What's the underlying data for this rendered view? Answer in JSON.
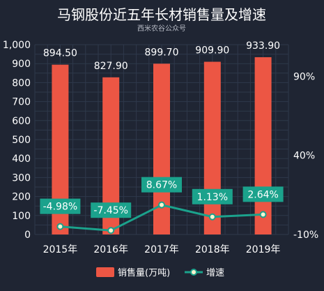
{
  "chart_data": {
    "type": "bar",
    "title": "马钢股份近五年长材销售量及增速",
    "subtitle": "西米农谷公众号",
    "categories": [
      "2015年",
      "2016年",
      "2017年",
      "2018年",
      "2019年"
    ],
    "series": [
      {
        "name": "销售量(万吨)",
        "type": "bar",
        "axis": "left",
        "values": [
          894.5,
          827.9,
          899.7,
          909.9,
          933.9
        ],
        "labels": [
          "894.50",
          "827.90",
          "899.70",
          "909.90",
          "933.90"
        ]
      },
      {
        "name": "增速",
        "type": "line",
        "axis": "right",
        "values": [
          -4.98,
          -7.45,
          8.67,
          1.13,
          2.64
        ],
        "labels": [
          "-4.98%",
          "-7.45%",
          "8.67%",
          "1.13%",
          "2.64%"
        ]
      }
    ],
    "y_left": {
      "ylim": [
        0,
        1000
      ],
      "ticks": [
        "0",
        "100",
        "200",
        "300",
        "400",
        "500",
        "600",
        "700",
        "800",
        "900",
        "1,000"
      ]
    },
    "y_right": {
      "ylim": [
        -10,
        110
      ],
      "tick_values": [
        -10,
        40,
        90
      ],
      "ticks": [
        "-10%",
        "40%",
        "90%"
      ]
    },
    "grid": true,
    "legend_position": "bottom"
  },
  "colors": {
    "background": "#1f2533",
    "grid": "#2f394b",
    "bar": "#ec5644",
    "line": "#1ba28c",
    "label_box": "#1ba28c",
    "point": "#fff3cf",
    "text": "#ffffff"
  }
}
